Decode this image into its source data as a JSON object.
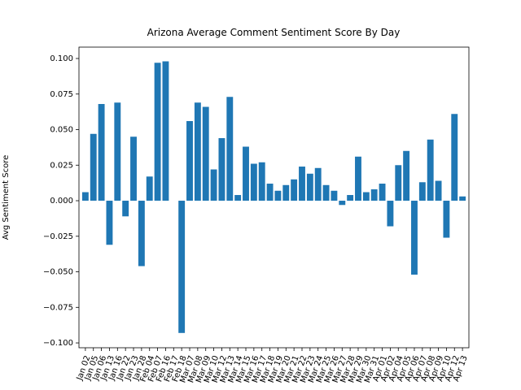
{
  "chart_data": {
    "type": "bar",
    "title": "Arizona Average Comment Sentiment Score By Day",
    "y_label": "Avg Sentiment Score",
    "color": "#1f77b4",
    "categories": [
      "Jan 02",
      "Jan 05",
      "Jan 06",
      "Jan 13",
      "Jan 16",
      "Jan 22",
      "Jan 23",
      "Jan 28",
      "Feb 04",
      "Feb 07",
      "Feb 16",
      "Feb 17",
      "Feb 18",
      "Mar 07",
      "Mar 08",
      "Mar 09",
      "Mar 10",
      "Mar 12",
      "Mar 13",
      "Mar 14",
      "Mar 15",
      "Mar 16",
      "Mar 17",
      "Mar 18",
      "Mar 19",
      "Mar 20",
      "Mar 21",
      "Mar 22",
      "Mar 23",
      "Mar 24",
      "Mar 25",
      "Mar 26",
      "Mar 27",
      "Mar 28",
      "Mar 29",
      "Mar 30",
      "Mar 31",
      "Apr 01",
      "Apr 02",
      "Apr 04",
      "Apr 05",
      "Apr 06",
      "Apr 07",
      "Apr 08",
      "Apr 09",
      "Apr 10",
      "Apr 12",
      "Apr 13"
    ],
    "values": [
      0.006,
      0.047,
      0.068,
      -0.031,
      0.069,
      -0.011,
      0.045,
      -0.046,
      0.017,
      0.097,
      0.098,
      0.0,
      -0.093,
      0.056,
      0.069,
      0.066,
      0.022,
      0.044,
      0.073,
      0.004,
      0.038,
      0.026,
      0.027,
      0.012,
      0.007,
      0.011,
      0.015,
      0.024,
      0.019,
      0.023,
      0.011,
      0.007,
      -0.003,
      0.004,
      0.031,
      0.006,
      0.008,
      0.012,
      -0.018,
      0.025,
      0.035,
      -0.052,
      0.013,
      0.043,
      0.014,
      -0.026,
      0.061,
      0.003
    ],
    "ylim": [
      -0.1034,
      0.108
    ],
    "yticks": [
      {
        "value": -0.1,
        "label": "−0.100"
      },
      {
        "value": -0.075,
        "label": "−0.075"
      },
      {
        "value": -0.05,
        "label": "−0.050"
      },
      {
        "value": -0.025,
        "label": "−0.025"
      },
      {
        "value": 0,
        "label": "0.000"
      },
      {
        "value": 0.025,
        "label": "0.025"
      },
      {
        "value": 0.05,
        "label": "0.050"
      },
      {
        "value": 0.075,
        "label": "0.075"
      },
      {
        "value": 0.1,
        "label": "0.100"
      }
    ]
  }
}
